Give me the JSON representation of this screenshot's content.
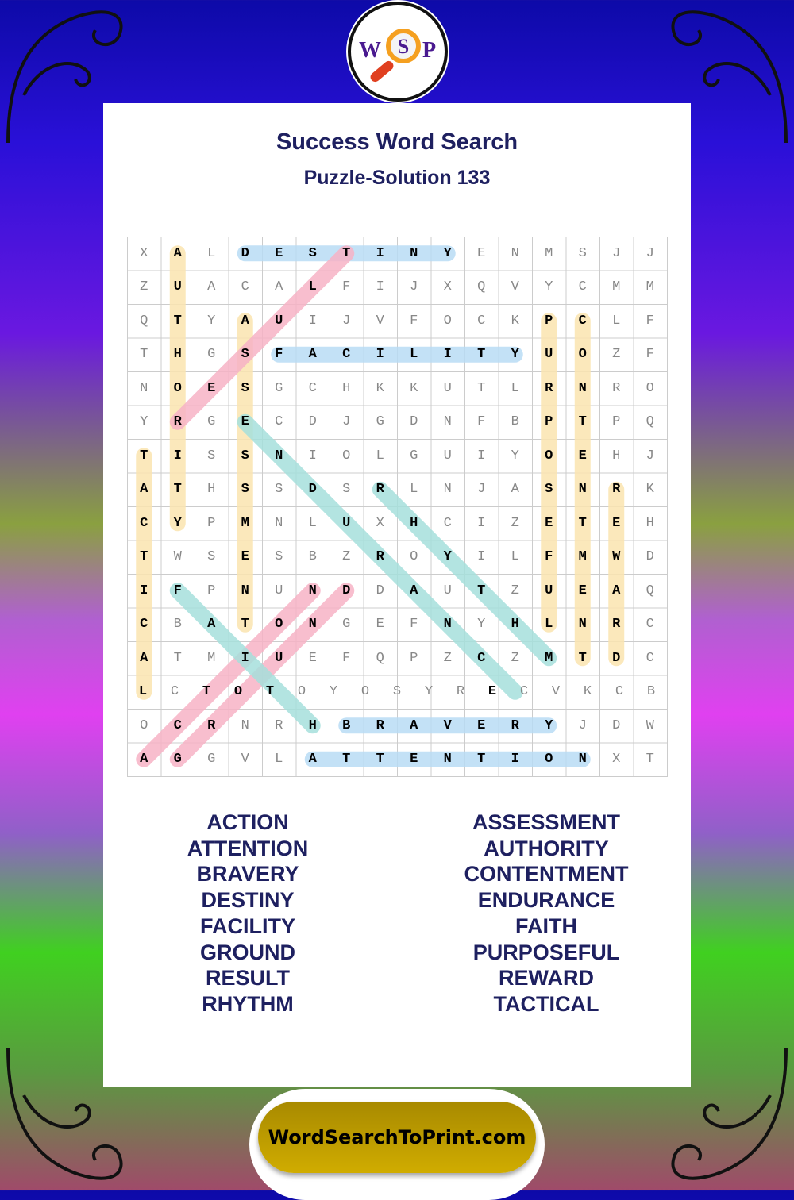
{
  "logo": {
    "letters": [
      "W",
      "S",
      "P"
    ],
    "colors": {
      "letters": "#4a1a90",
      "lens": "#f5a020",
      "handle": "#e04020"
    }
  },
  "title": "Success Word Search",
  "subtitle": "Puzzle-Solution 133",
  "grid": {
    "rows": [
      "XALDESTINYENMSJJ",
      "ZUACALFIJXQVYCMM",
      "QTYAUIJVFOCKPCLF",
      "THGSFACILITYUOZF",
      "NOESGCHKKUTLRNRO",
      "YRGECDJGDNFBPTPQ",
      "TISSNIOLGUIYOEHJ",
      "ATHSSDSRLNJASNRK",
      "CYPMNLUXHCIZETEH",
      "TWSESBZROYILFMWD",
      "IFPNUNDDAUTZUEAQ",
      "CBATONGEFNYHLNRC",
      "ATMIUEFQPZCZMTDC",
      "LCTOTOYOSYRECVKCB",
      "OCRNRHBRAVERYJDW",
      "AGGVLATTENTIONXT"
    ],
    "solutions": [
      {
        "word": "DESTINY",
        "from": [
          0,
          3
        ],
        "to": [
          0,
          9
        ],
        "color": "#b9dcf5"
      },
      {
        "word": "FACILITY",
        "from": [
          3,
          4
        ],
        "to": [
          3,
          11
        ],
        "color": "#b9dcf5"
      },
      {
        "word": "BRAVERY",
        "from": [
          14,
          6
        ],
        "to": [
          14,
          12
        ],
        "color": "#b9dcf5"
      },
      {
        "word": "ATTENTION",
        "from": [
          15,
          5
        ],
        "to": [
          15,
          13
        ],
        "color": "#b9dcf5"
      },
      {
        "word": "AUTHORITY",
        "from": [
          0,
          1
        ],
        "to": [
          8,
          1
        ],
        "color": "#fbe5b0"
      },
      {
        "word": "ASSESSMENT",
        "from": [
          2,
          3
        ],
        "to": [
          11,
          3
        ],
        "color": "#fbe5b0"
      },
      {
        "word": "PURPOSEFUL",
        "from": [
          2,
          12
        ],
        "to": [
          11,
          12
        ],
        "color": "#fbe5b0"
      },
      {
        "word": "CONTENTMENT",
        "from": [
          2,
          13
        ],
        "to": [
          12,
          13
        ],
        "color": "#fbe5b0"
      },
      {
        "word": "REWARD",
        "from": [
          7,
          14
        ],
        "to": [
          12,
          14
        ],
        "color": "#fbe5b0"
      },
      {
        "word": "TACTICAL",
        "from": [
          6,
          0
        ],
        "to": [
          13,
          0
        ],
        "color": "#fbe5b0"
      },
      {
        "word": "RESULT",
        "from": [
          5,
          1
        ],
        "to": [
          0,
          6
        ],
        "color": "#f7b3c6"
      },
      {
        "word": "ACTION",
        "from": [
          15,
          0
        ],
        "to": [
          10,
          5
        ],
        "color": "#f7b3c6"
      },
      {
        "word": "GROUND",
        "from": [
          15,
          1
        ],
        "to": [
          10,
          6
        ],
        "color": "#f7b3c6"
      },
      {
        "word": "ENDURANCE",
        "from": [
          5,
          3
        ],
        "to": [
          13,
          11
        ],
        "color": "#a6e0dc"
      },
      {
        "word": "RHYTHM",
        "from": [
          7,
          7
        ],
        "to": [
          12,
          12
        ],
        "color": "#a6e0dc"
      },
      {
        "word": "FAITH",
        "from": [
          10,
          1
        ],
        "to": [
          14,
          5
        ],
        "color": "#a6e0dc"
      }
    ]
  },
  "word_list": {
    "left": [
      "ACTION",
      "ATTENTION",
      "BRAVERY",
      "DESTINY",
      "FACILITY",
      "GROUND",
      "RESULT",
      "RHYTHM"
    ],
    "right": [
      "ASSESSMENT",
      "AUTHORITY",
      "CONTENTMENT",
      "ENDURANCE",
      "FAITH",
      "PURPOSEFUL",
      "REWARD",
      "TACTICAL"
    ]
  },
  "footer": {
    "label": "WordSearchToPrint.com",
    "color": "#c0a000"
  }
}
